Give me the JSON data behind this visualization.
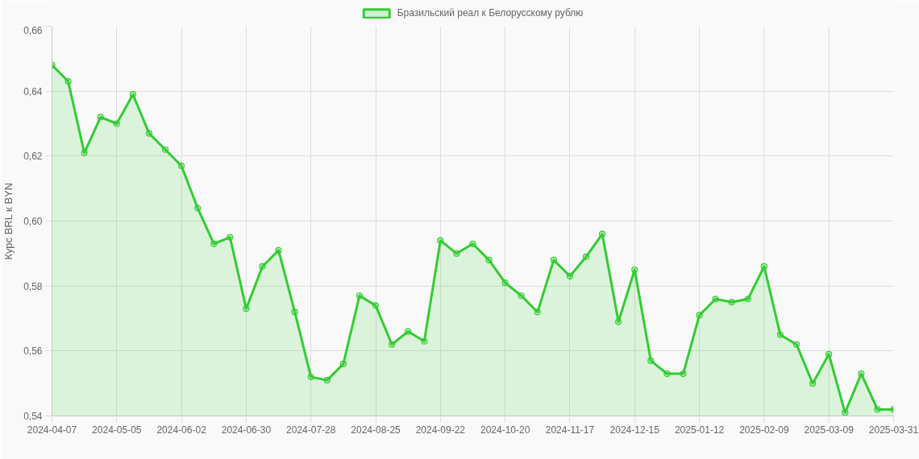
{
  "chart_data": {
    "type": "area",
    "categories": [
      "2024-04-07",
      null,
      null,
      null,
      "2024-05-05",
      null,
      null,
      null,
      "2024-06-02",
      null,
      null,
      null,
      "2024-06-30",
      null,
      null,
      null,
      "2024-07-28",
      null,
      null,
      null,
      "2024-08-25",
      null,
      null,
      null,
      "2024-09-22",
      null,
      null,
      null,
      "2024-10-20",
      null,
      null,
      null,
      "2024-11-17",
      null,
      null,
      null,
      "2024-12-15",
      null,
      null,
      null,
      "2025-01-12",
      null,
      null,
      null,
      "2025-02-09",
      null,
      null,
      null,
      "2025-03-09",
      null,
      null,
      null,
      "2025-03-31"
    ],
    "series": [
      {
        "name": "Бразильский реал к Белорусскому рублю",
        "color": "#32cd32",
        "values": [
          0.648,
          0.643,
          0.621,
          0.632,
          0.63,
          0.639,
          0.627,
          0.622,
          0.617,
          0.604,
          0.593,
          0.595,
          0.573,
          0.586,
          0.591,
          0.572,
          0.552,
          0.551,
          0.556,
          0.577,
          0.574,
          0.562,
          0.566,
          0.563,
          0.594,
          0.59,
          0.593,
          0.588,
          0.581,
          0.577,
          0.572,
          0.588,
          0.583,
          0.589,
          0.596,
          0.569,
          0.585,
          0.557,
          0.553,
          0.553,
          0.571,
          0.576,
          0.575,
          0.576,
          0.586,
          0.565,
          0.562,
          0.55,
          0.559,
          0.541,
          0.553,
          0.542,
          0.542
        ]
      }
    ],
    "ylabel": "Курс BRL к BYN",
    "ylim": [
      0.54,
      0.66
    ],
    "yticks": [
      {
        "value": 0.54,
        "label": "0,54"
      },
      {
        "value": 0.56,
        "label": "0,56"
      },
      {
        "value": 0.58,
        "label": "0,58"
      },
      {
        "value": 0.6,
        "label": "0,60"
      },
      {
        "value": 0.62,
        "label": "0,62"
      },
      {
        "value": 0.64,
        "label": "0,64"
      },
      {
        "value": 0.66,
        "label": "0,66"
      }
    ],
    "grid": true,
    "legend": "top",
    "marker": "circle",
    "line_style": "solid"
  }
}
